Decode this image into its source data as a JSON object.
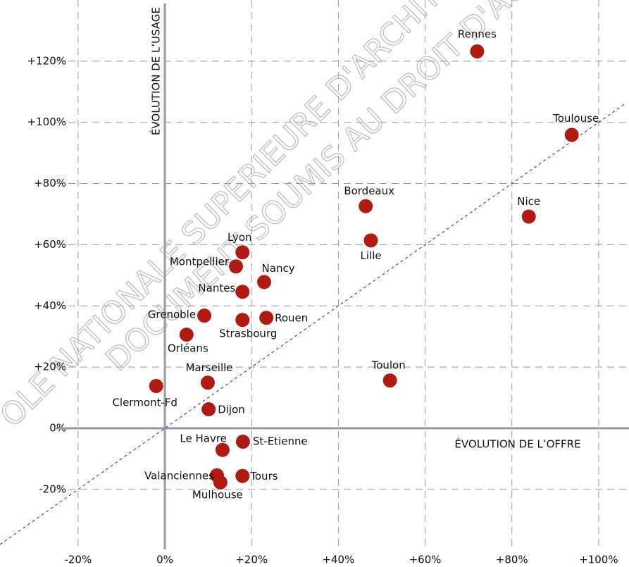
{
  "chart_data": {
    "type": "scatter",
    "x_label": "ÉVOLUTION DE L’OFFRE",
    "y_label": "ÉVOLUTION DE L’USAGE",
    "annotations": [
      "OLE NATIONALE SUPERIEURE D'ARCHITE",
      "DOCUMENT SOUMIS AU DROIT D'AU"
    ],
    "labels": [
      "Rennes",
      "Toulouse",
      "Bordeaux",
      "Nice",
      "Lille",
      "Lyon",
      "Montpellier",
      "Nancy",
      "Nantes",
      "Grenoble",
      "Strasbourg",
      "Rouen",
      "Orléans",
      "Toulon",
      "Marseille",
      "Clermont-Fd",
      "Dijon",
      "St-Etienne",
      "Le Havre",
      "Tours",
      "Valanciennes",
      "Mulhouse"
    ],
    "x": [
      72.0,
      93.8,
      46.3,
      83.9,
      47.5,
      17.9,
      16.4,
      22.9,
      17.9,
      9.1,
      17.9,
      23.4,
      5.0,
      51.9,
      9.9,
      -2.0,
      10.1,
      18.0,
      13.3,
      17.9,
      12.0,
      12.8
    ],
    "values": [
      123.2,
      95.9,
      72.6,
      69.2,
      61.4,
      57.5,
      52.9,
      47.8,
      44.6,
      36.8,
      35.4,
      36.1,
      30.6,
      15.6,
      14.9,
      13.8,
      6.2,
      -4.4,
      -7.1,
      -15.6,
      -15.4,
      -17.7
    ],
    "color": "#b01a10",
    "xlim": [
      -38,
      107
    ],
    "ylim": [
      -38,
      140
    ],
    "xticks": [
      {
        "value": -20,
        "label": "-20%"
      },
      {
        "value": 0,
        "label": "0%"
      },
      {
        "value": 20,
        "label": "+20%"
      },
      {
        "value": 40,
        "label": "+40%"
      },
      {
        "value": 60,
        "label": "+60%"
      },
      {
        "value": 80,
        "label": "+80%"
      },
      {
        "value": 100,
        "label": "+100%"
      }
    ],
    "yticks": [
      {
        "value": -20,
        "label": "-20%"
      },
      {
        "value": 0,
        "label": "0%"
      },
      {
        "value": 20,
        "label": "+20%"
      },
      {
        "value": 40,
        "label": "+40%"
      },
      {
        "value": 60,
        "label": "+60%"
      },
      {
        "value": 80,
        "label": "+80%"
      },
      {
        "value": 100,
        "label": "+100%"
      },
      {
        "value": 120,
        "label": "+120%"
      }
    ],
    "grid": true
  }
}
